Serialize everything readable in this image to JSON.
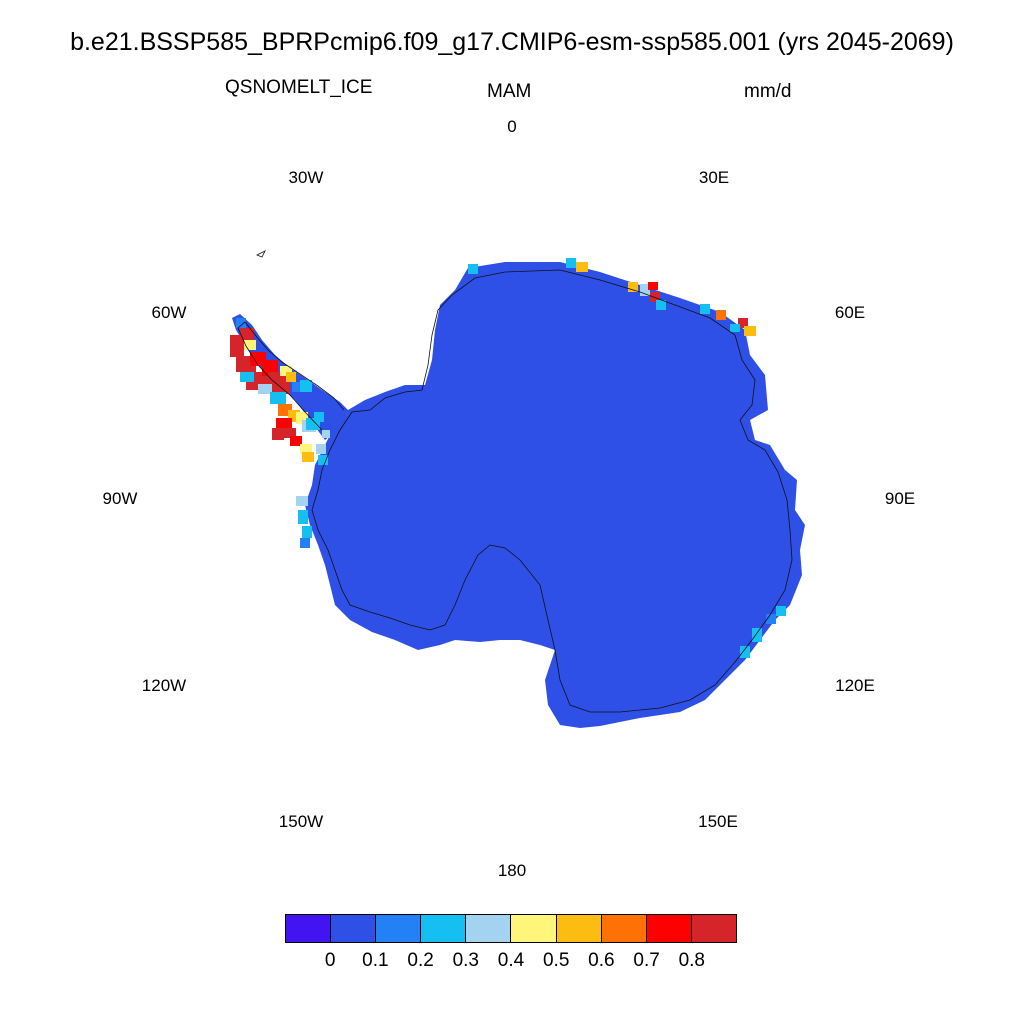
{
  "title": "b.e21.BSSP585_BPRPcmip6.f09_g17.CMIP6-esm-ssp585.001 (yrs 2045-2069)",
  "variable": "QSNOMELT_ICE",
  "season": "MAM",
  "units": "mm/d",
  "longitude_labels": [
    "0",
    "30E",
    "60E",
    "90E",
    "120E",
    "150E",
    "180",
    "150W",
    "120W",
    "90W",
    "60W",
    "30W"
  ],
  "colorbar": {
    "colors": [
      "#4214f2",
      "#2e50e6",
      "#2381f5",
      "#16bff2",
      "#a3d3f1",
      "#fef57a",
      "#fdbc11",
      "#fe7205",
      "#fd0002",
      "#d5252a"
    ],
    "labels": [
      "0",
      "0.1",
      "0.2",
      "0.3",
      "0.4",
      "0.5",
      "0.6",
      "0.7",
      "0.8"
    ]
  },
  "map": {
    "projection": "south polar stereographic",
    "region": "Antarctica",
    "dominant_value_bin": "0-0.1",
    "land_color": "#2e50e6",
    "highest_values_region": "Antarctic Peninsula",
    "coastline_color": "#000000"
  }
}
